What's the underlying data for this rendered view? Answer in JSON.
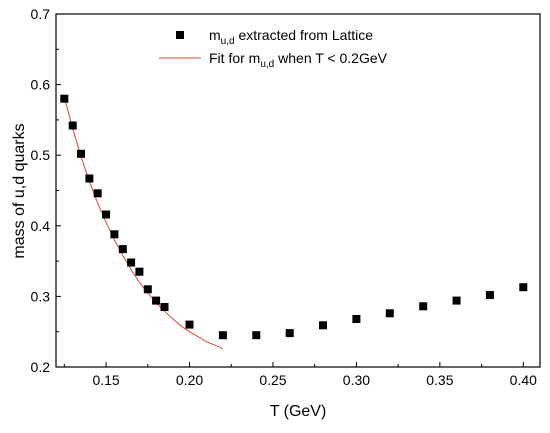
{
  "chart_data": {
    "type": "scatter",
    "xlabel": "T (GeV)",
    "ylabel": "mass of u,d quarks",
    "xlim": [
      0.12,
      0.41
    ],
    "ylim": [
      0.2,
      0.7
    ],
    "x_ticks": [
      "0.15",
      "0.20",
      "0.25",
      "0.30",
      "0.35",
      "0.40"
    ],
    "y_ticks": [
      "0.2",
      "0.3",
      "0.4",
      "0.5",
      "0.6",
      "0.7"
    ],
    "grid": false,
    "legend_position": "top-right",
    "legend": [
      {
        "main": "m",
        "sub": "u,d",
        "rest": " extracted from Lattice",
        "marker": "square",
        "color": "#000000"
      },
      {
        "main": "Fit for m",
        "sub": "u,d",
        "rest": " when T < 0.2GeV",
        "marker": "line",
        "color": "#e0453a"
      }
    ],
    "series": [
      {
        "kind": "points",
        "marker": "square",
        "color": "#000000",
        "x": [
          0.125,
          0.13,
          0.135,
          0.14,
          0.145,
          0.15,
          0.155,
          0.16,
          0.165,
          0.17,
          0.175,
          0.18,
          0.185,
          0.2,
          0.22,
          0.24,
          0.26,
          0.28,
          0.3,
          0.32,
          0.34,
          0.36,
          0.38,
          0.4
        ],
        "y": [
          0.58,
          0.542,
          0.502,
          0.467,
          0.446,
          0.416,
          0.388,
          0.367,
          0.348,
          0.335,
          0.31,
          0.294,
          0.285,
          0.26,
          0.245,
          0.245,
          0.248,
          0.259,
          0.268,
          0.276,
          0.286,
          0.294,
          0.302,
          0.313
        ]
      },
      {
        "kind": "line",
        "color": "#e0453a",
        "x": [
          0.125,
          0.13,
          0.135,
          0.14,
          0.145,
          0.15,
          0.155,
          0.16,
          0.165,
          0.17,
          0.175,
          0.18,
          0.185,
          0.19,
          0.195,
          0.2,
          0.205,
          0.21,
          0.215,
          0.22
        ],
        "y": [
          0.582,
          0.538,
          0.498,
          0.463,
          0.432,
          0.405,
          0.38,
          0.358,
          0.338,
          0.32,
          0.305,
          0.291,
          0.279,
          0.268,
          0.258,
          0.25,
          0.243,
          0.236,
          0.231,
          0.226
        ]
      }
    ]
  }
}
